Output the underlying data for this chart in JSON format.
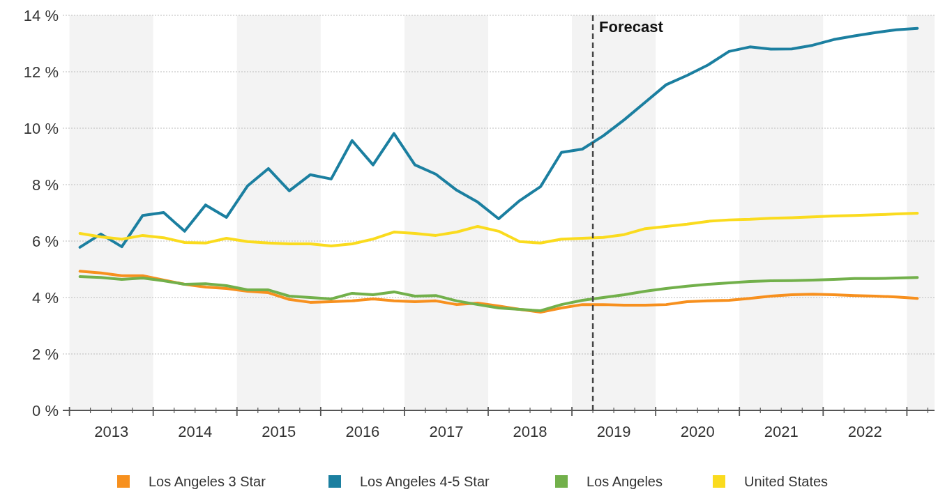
{
  "chart_data": {
    "type": "line",
    "x": [
      2013.125,
      2013.375,
      2013.625,
      2013.875,
      2014.125,
      2014.375,
      2014.625,
      2014.875,
      2015.125,
      2015.375,
      2015.625,
      2015.875,
      2016.125,
      2016.375,
      2016.625,
      2016.875,
      2017.125,
      2017.375,
      2017.625,
      2017.875,
      2018.125,
      2018.375,
      2018.625,
      2018.875,
      2019.125,
      2019.375,
      2019.625,
      2019.875,
      2020.125,
      2020.375,
      2020.625,
      2020.875,
      2021.125,
      2021.375,
      2021.625,
      2021.875,
      2022.125,
      2022.375,
      2022.625,
      2022.875,
      2023.125
    ],
    "series": [
      {
        "name": "Los Angeles 3 Star",
        "color": "#f7901e",
        "values": [
          4.93,
          4.87,
          4.77,
          4.77,
          4.62,
          4.47,
          4.37,
          4.32,
          4.22,
          4.17,
          3.93,
          3.83,
          3.85,
          3.88,
          3.95,
          3.88,
          3.85,
          3.88,
          3.75,
          3.8,
          3.7,
          3.58,
          3.48,
          3.63,
          3.75,
          3.75,
          3.73,
          3.73,
          3.75,
          3.85,
          3.88,
          3.9,
          3.97,
          4.05,
          4.1,
          4.12,
          4.1,
          4.07,
          4.05,
          4.02,
          3.97
        ]
      },
      {
        "name": "Los Angeles 4-5 Star",
        "color": "#1b7fa0",
        "values": [
          5.78,
          6.25,
          5.8,
          6.91,
          7.01,
          6.35,
          7.28,
          6.84,
          7.95,
          8.57,
          7.78,
          8.35,
          8.2,
          9.56,
          8.7,
          9.81,
          8.7,
          8.37,
          7.8,
          7.38,
          6.79,
          7.43,
          7.93,
          9.14,
          9.26,
          9.73,
          10.3,
          10.92,
          11.54,
          11.87,
          12.24,
          12.72,
          12.88,
          12.8,
          12.81,
          12.94,
          13.14,
          13.27,
          13.39,
          13.49,
          13.54
        ]
      },
      {
        "name": "Los Angeles",
        "color": "#72b04b",
        "values": [
          4.74,
          4.71,
          4.64,
          4.69,
          4.59,
          4.47,
          4.49,
          4.42,
          4.27,
          4.27,
          4.05,
          4.0,
          3.95,
          4.15,
          4.1,
          4.2,
          4.05,
          4.07,
          3.88,
          3.75,
          3.63,
          3.58,
          3.53,
          3.75,
          3.9,
          4.0,
          4.1,
          4.22,
          4.32,
          4.4,
          4.47,
          4.52,
          4.57,
          4.59,
          4.6,
          4.62,
          4.64,
          4.67,
          4.67,
          4.69,
          4.71
        ]
      },
      {
        "name": "United States",
        "color": "#fadb1e",
        "values": [
          6.27,
          6.15,
          6.07,
          6.2,
          6.12,
          5.95,
          5.93,
          6.1,
          5.98,
          5.93,
          5.9,
          5.9,
          5.83,
          5.9,
          6.07,
          6.32,
          6.27,
          6.2,
          6.32,
          6.52,
          6.35,
          5.98,
          5.93,
          6.07,
          6.1,
          6.13,
          6.23,
          6.44,
          6.52,
          6.6,
          6.7,
          6.75,
          6.77,
          6.81,
          6.83,
          6.86,
          6.89,
          6.91,
          6.93,
          6.96,
          6.99
        ]
      }
    ],
    "xlim": [
      2012.92,
      2023.33
    ],
    "xticks": [
      {
        "value": 2013,
        "label": null
      },
      {
        "value": 2013.25,
        "label": null
      },
      {
        "value": 2013.5,
        "label": "2013"
      },
      {
        "value": 2013.75,
        "label": null
      },
      {
        "value": 2014,
        "label": null
      },
      {
        "value": 2014.25,
        "label": null
      },
      {
        "value": 2014.5,
        "label": "2014"
      },
      {
        "value": 2014.75,
        "label": null
      },
      {
        "value": 2015,
        "label": null
      },
      {
        "value": 2015.25,
        "label": null
      },
      {
        "value": 2015.5,
        "label": "2015"
      },
      {
        "value": 2015.75,
        "label": null
      },
      {
        "value": 2016,
        "label": null
      },
      {
        "value": 2016.25,
        "label": null
      },
      {
        "value": 2016.5,
        "label": "2016"
      },
      {
        "value": 2016.75,
        "label": null
      },
      {
        "value": 2017,
        "label": null
      },
      {
        "value": 2017.25,
        "label": null
      },
      {
        "value": 2017.5,
        "label": "2017"
      },
      {
        "value": 2017.75,
        "label": null
      },
      {
        "value": 2018,
        "label": null
      },
      {
        "value": 2018.25,
        "label": null
      },
      {
        "value": 2018.5,
        "label": "2018"
      },
      {
        "value": 2018.75,
        "label": null
      },
      {
        "value": 2019,
        "label": null
      },
      {
        "value": 2019.25,
        "label": null
      },
      {
        "value": 2019.5,
        "label": "2019"
      },
      {
        "value": 2019.75,
        "label": null
      },
      {
        "value": 2020,
        "label": null
      },
      {
        "value": 2020.25,
        "label": null
      },
      {
        "value": 2020.5,
        "label": "2020"
      },
      {
        "value": 2020.75,
        "label": null
      },
      {
        "value": 2021,
        "label": null
      },
      {
        "value": 2021.25,
        "label": null
      },
      {
        "value": 2021.5,
        "label": "2021"
      },
      {
        "value": 2021.75,
        "label": null
      },
      {
        "value": 2022,
        "label": null
      },
      {
        "value": 2022.25,
        "label": null
      },
      {
        "value": 2022.5,
        "label": "2022"
      },
      {
        "value": 2022.75,
        "label": null
      },
      {
        "value": 2023,
        "label": null
      },
      {
        "value": 2023.25,
        "label": null
      }
    ],
    "ylim": [
      0,
      14
    ],
    "yticks": [
      {
        "value": 0,
        "label": "0 %"
      },
      {
        "value": 2,
        "label": "2 %"
      },
      {
        "value": 4,
        "label": "4 %"
      },
      {
        "value": 6,
        "label": "6 %"
      },
      {
        "value": 8,
        "label": "8 %"
      },
      {
        "value": 10,
        "label": "10 %"
      },
      {
        "value": 12,
        "label": "12 %"
      },
      {
        "value": 14,
        "label": "14 %"
      }
    ],
    "grid": "y",
    "legend": "bottom",
    "line_style": "solid",
    "marker": "none",
    "bands": [
      {
        "axis": "x",
        "from": 2013,
        "to": 2014,
        "color": "#f3f3f3"
      },
      {
        "axis": "x",
        "from": 2015,
        "to": 2016,
        "color": "#f3f3f3"
      },
      {
        "axis": "x",
        "from": 2017,
        "to": 2018,
        "color": "#f3f3f3"
      },
      {
        "axis": "x",
        "from": 2019,
        "to": 2020,
        "color": "#f3f3f3"
      },
      {
        "axis": "x",
        "from": 2021,
        "to": 2022,
        "color": "#f3f3f3"
      },
      {
        "axis": "x",
        "from": 2023,
        "to": 2023.33,
        "color": "#f3f3f3"
      }
    ],
    "ref_lines": [
      {
        "axis": "x",
        "value": 2019.25,
        "label": "Forecast",
        "color": "#444444",
        "line_style": "dashed"
      }
    ]
  }
}
